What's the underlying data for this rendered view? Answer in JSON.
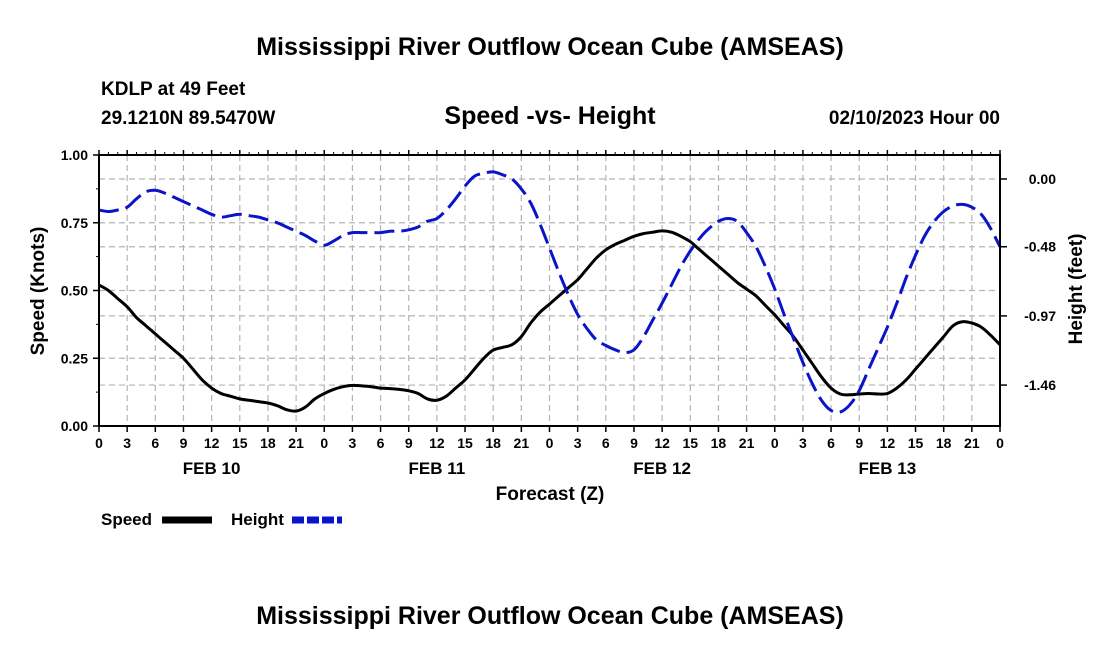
{
  "header": {
    "title": "Mississippi River Outflow Ocean Cube (AMSEAS)",
    "station": "KDLP at 49 Feet",
    "coords": "29.1210N  89.5470W",
    "date": "02/10/2023 Hour 00",
    "footer_title": "Mississippi River Outflow Ocean Cube (AMSEAS)"
  },
  "chart_data": {
    "type": "line",
    "title": "Speed -vs- Height",
    "xlabel": "Forecast (Z)",
    "ylabel_left": "Speed (Knots)",
    "ylabel_right": "Height (feet)",
    "x_unit": "forecast hour from 02/10/2023 00Z",
    "xlim": [
      0,
      96
    ],
    "ylim_left": [
      0,
      1
    ],
    "ylim_right": [
      -1.75,
      0.17
    ],
    "left_ticks": [
      "0.00",
      "0.25",
      "0.50",
      "0.75",
      "1.00"
    ],
    "left_tick_values": [
      0,
      0.25,
      0.5,
      0.75,
      1.0
    ],
    "right_ticks": [
      "0.00",
      "-0.48",
      "-0.97",
      "-1.46"
    ],
    "right_tick_values": [
      0.0,
      -0.48,
      -0.97,
      -1.46
    ],
    "x_tick_labels": [
      "0",
      "3",
      "6",
      "9",
      "12",
      "15",
      "18",
      "21",
      "0",
      "3",
      "6",
      "9",
      "12",
      "15",
      "18",
      "21",
      "0",
      "3",
      "6",
      "9",
      "12",
      "15",
      "18",
      "21",
      "0",
      "3",
      "6",
      "9",
      "12",
      "15",
      "18",
      "21",
      "0"
    ],
    "day_labels": [
      {
        "label": "FEB 10",
        "hour": 12
      },
      {
        "label": "FEB 11",
        "hour": 36
      },
      {
        "label": "FEB 12",
        "hour": 60
      },
      {
        "label": "FEB 13",
        "hour": 84
      }
    ],
    "grid": true,
    "legend": "bottom-left",
    "series": [
      {
        "name": "Speed",
        "axis": "left",
        "color": "#000000",
        "dash": "solid",
        "points": [
          [
            0,
            0.52
          ],
          [
            1,
            0.5
          ],
          [
            2,
            0.47
          ],
          [
            3,
            0.44
          ],
          [
            4,
            0.4
          ],
          [
            5,
            0.37
          ],
          [
            6,
            0.34
          ],
          [
            7,
            0.31
          ],
          [
            8,
            0.28
          ],
          [
            9,
            0.25
          ],
          [
            10,
            0.21
          ],
          [
            11,
            0.17
          ],
          [
            12,
            0.14
          ],
          [
            13,
            0.12
          ],
          [
            14,
            0.11
          ],
          [
            15,
            0.1
          ],
          [
            16,
            0.095
          ],
          [
            17,
            0.09
          ],
          [
            18,
            0.085
          ],
          [
            19,
            0.075
          ],
          [
            20,
            0.06
          ],
          [
            21,
            0.055
          ],
          [
            22,
            0.07
          ],
          [
            23,
            0.1
          ],
          [
            24,
            0.12
          ],
          [
            25,
            0.135
          ],
          [
            26,
            0.145
          ],
          [
            27,
            0.15
          ],
          [
            28,
            0.148
          ],
          [
            29,
            0.145
          ],
          [
            30,
            0.14
          ],
          [
            31,
            0.138
          ],
          [
            32,
            0.135
          ],
          [
            33,
            0.13
          ],
          [
            34,
            0.12
          ],
          [
            35,
            0.1
          ],
          [
            36,
            0.095
          ],
          [
            37,
            0.11
          ],
          [
            38,
            0.14
          ],
          [
            39,
            0.17
          ],
          [
            40,
            0.21
          ],
          [
            41,
            0.25
          ],
          [
            42,
            0.28
          ],
          [
            43,
            0.29
          ],
          [
            44,
            0.3
          ],
          [
            45,
            0.33
          ],
          [
            46,
            0.38
          ],
          [
            47,
            0.42
          ],
          [
            48,
            0.45
          ],
          [
            49,
            0.48
          ],
          [
            50,
            0.51
          ],
          [
            51,
            0.54
          ],
          [
            52,
            0.58
          ],
          [
            53,
            0.62
          ],
          [
            54,
            0.65
          ],
          [
            55,
            0.67
          ],
          [
            56,
            0.685
          ],
          [
            57,
            0.7
          ],
          [
            58,
            0.71
          ],
          [
            59,
            0.715
          ],
          [
            60,
            0.72
          ],
          [
            61,
            0.715
          ],
          [
            62,
            0.7
          ],
          [
            63,
            0.68
          ],
          [
            64,
            0.65
          ],
          [
            65,
            0.62
          ],
          [
            66,
            0.59
          ],
          [
            67,
            0.56
          ],
          [
            68,
            0.53
          ],
          [
            69,
            0.505
          ],
          [
            70,
            0.48
          ],
          [
            71,
            0.445
          ],
          [
            72,
            0.41
          ],
          [
            73,
            0.37
          ],
          [
            74,
            0.33
          ],
          [
            75,
            0.28
          ],
          [
            76,
            0.23
          ],
          [
            77,
            0.18
          ],
          [
            78,
            0.14
          ],
          [
            79,
            0.118
          ],
          [
            80,
            0.115
          ],
          [
            81,
            0.118
          ],
          [
            82,
            0.12
          ],
          [
            83,
            0.118
          ],
          [
            84,
            0.12
          ],
          [
            85,
            0.14
          ],
          [
            86,
            0.17
          ],
          [
            87,
            0.21
          ],
          [
            88,
            0.25
          ],
          [
            89,
            0.29
          ],
          [
            90,
            0.33
          ],
          [
            91,
            0.37
          ],
          [
            92,
            0.385
          ],
          [
            93,
            0.38
          ],
          [
            94,
            0.365
          ],
          [
            95,
            0.335
          ],
          [
            96,
            0.3
          ]
        ]
      },
      {
        "name": "Height",
        "axis": "right",
        "color": "#0a14c8",
        "dash": "dashed",
        "points": [
          [
            0,
            -0.22
          ],
          [
            1,
            -0.23
          ],
          [
            2,
            -0.22
          ],
          [
            3,
            -0.2
          ],
          [
            4,
            -0.14
          ],
          [
            5,
            -0.09
          ],
          [
            6,
            -0.08
          ],
          [
            7,
            -0.1
          ],
          [
            8,
            -0.13
          ],
          [
            9,
            -0.16
          ],
          [
            10,
            -0.19
          ],
          [
            11,
            -0.22
          ],
          [
            12,
            -0.25
          ],
          [
            13,
            -0.27
          ],
          [
            14,
            -0.26
          ],
          [
            15,
            -0.25
          ],
          [
            16,
            -0.26
          ],
          [
            17,
            -0.27
          ],
          [
            18,
            -0.29
          ],
          [
            19,
            -0.31
          ],
          [
            20,
            -0.34
          ],
          [
            21,
            -0.37
          ],
          [
            22,
            -0.4
          ],
          [
            23,
            -0.44
          ],
          [
            24,
            -0.47
          ],
          [
            25,
            -0.44
          ],
          [
            26,
            -0.4
          ],
          [
            27,
            -0.38
          ],
          [
            28,
            -0.38
          ],
          [
            29,
            -0.38
          ],
          [
            30,
            -0.38
          ],
          [
            31,
            -0.37
          ],
          [
            32,
            -0.37
          ],
          [
            33,
            -0.36
          ],
          [
            34,
            -0.34
          ],
          [
            35,
            -0.3
          ],
          [
            36,
            -0.28
          ],
          [
            37,
            -0.22
          ],
          [
            38,
            -0.14
          ],
          [
            39,
            -0.05
          ],
          [
            40,
            0.02
          ],
          [
            41,
            0.04
          ],
          [
            42,
            0.05
          ],
          [
            43,
            0.03
          ],
          [
            44,
            0.0
          ],
          [
            45,
            -0.07
          ],
          [
            46,
            -0.17
          ],
          [
            47,
            -0.32
          ],
          [
            48,
            -0.49
          ],
          [
            49,
            -0.66
          ],
          [
            50,
            -0.82
          ],
          [
            51,
            -0.96
          ],
          [
            52,
            -1.06
          ],
          [
            53,
            -1.14
          ],
          [
            54,
            -1.18
          ],
          [
            55,
            -1.21
          ],
          [
            56,
            -1.23
          ],
          [
            57,
            -1.21
          ],
          [
            58,
            -1.12
          ],
          [
            59,
            -1.0
          ],
          [
            60,
            -0.88
          ],
          [
            61,
            -0.75
          ],
          [
            62,
            -0.62
          ],
          [
            63,
            -0.51
          ],
          [
            64,
            -0.42
          ],
          [
            65,
            -0.35
          ],
          [
            66,
            -0.3
          ],
          [
            67,
            -0.28
          ],
          [
            68,
            -0.3
          ],
          [
            69,
            -0.38
          ],
          [
            70,
            -0.48
          ],
          [
            71,
            -0.62
          ],
          [
            72,
            -0.78
          ],
          [
            73,
            -0.96
          ],
          [
            74,
            -1.13
          ],
          [
            75,
            -1.3
          ],
          [
            76,
            -1.45
          ],
          [
            77,
            -1.57
          ],
          [
            78,
            -1.64
          ],
          [
            79,
            -1.65
          ],
          [
            80,
            -1.6
          ],
          [
            81,
            -1.5
          ],
          [
            82,
            -1.35
          ],
          [
            83,
            -1.2
          ],
          [
            84,
            -1.05
          ],
          [
            85,
            -0.88
          ],
          [
            86,
            -0.7
          ],
          [
            87,
            -0.54
          ],
          [
            88,
            -0.4
          ],
          [
            89,
            -0.3
          ],
          [
            90,
            -0.23
          ],
          [
            91,
            -0.19
          ],
          [
            92,
            -0.18
          ],
          [
            93,
            -0.2
          ],
          [
            94,
            -0.25
          ],
          [
            95,
            -0.35
          ],
          [
            96,
            -0.48
          ]
        ]
      }
    ]
  }
}
